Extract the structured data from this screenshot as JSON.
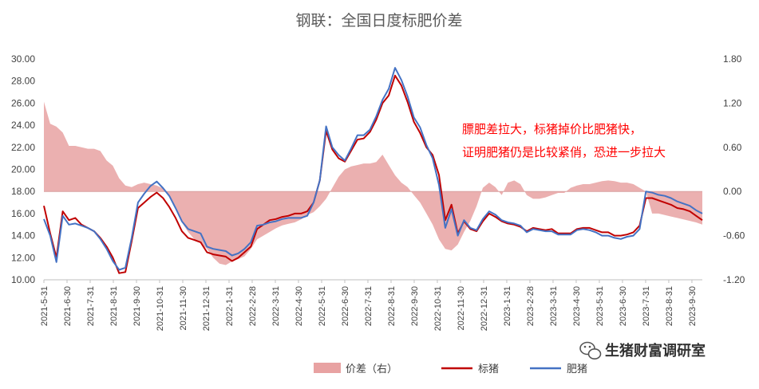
{
  "chart_data": {
    "type": "line",
    "title": "钢联：全国日度标肥价差",
    "y_left": {
      "min": 10,
      "max": 30,
      "ticks": [
        "30.00",
        "28.00",
        "26.00",
        "24.00",
        "22.00",
        "20.00",
        "18.00",
        "16.00",
        "14.00",
        "12.00",
        "10.00"
      ]
    },
    "y_right": {
      "min": -1.2,
      "max": 1.8,
      "ticks": [
        "1.80",
        "1.20",
        "0.60",
        "0.00",
        "-0.60",
        "-1.20"
      ]
    },
    "x_ticks": [
      "2021-5-31",
      "2021-6-30",
      "2021-7-31",
      "2021-8-31",
      "2021-9-30",
      "2021-10-31",
      "2021-11-30",
      "2021-12-31",
      "2022-1-31",
      "2022-2-28",
      "2022-3-31",
      "2022-4-30",
      "2022-5-31",
      "2022-6-30",
      "2022-7-31",
      "2022-8-31",
      "2022-9-30",
      "2022-10-31",
      "2022-11-30",
      "2022-12-31",
      "2023-1-31",
      "2023-2-28",
      "2023-3-31",
      "2023-4-30",
      "2023-5-31",
      "2023-6-30",
      "2023-7-31",
      "2023-8-31",
      "2023-9-30"
    ],
    "series": [
      {
        "name": "价差（右）",
        "type": "area",
        "color": "#e8a2a2",
        "axis": "right",
        "values": [
          1.22,
          0.92,
          0.88,
          0.8,
          0.62,
          0.62,
          0.6,
          0.58,
          0.58,
          0.55,
          0.42,
          0.35,
          0.18,
          0.08,
          0.06,
          0.1,
          0.12,
          0.1,
          0.08,
          0.04,
          -0.05,
          -0.2,
          -0.42,
          -0.55,
          -0.65,
          -0.7,
          -0.78,
          -0.9,
          -0.98,
          -1.0,
          -0.95,
          -0.92,
          -0.88,
          -0.78,
          -0.65,
          -0.6,
          -0.55,
          -0.5,
          -0.46,
          -0.44,
          -0.42,
          -0.38,
          -0.32,
          -0.28,
          -0.2,
          -0.1,
          0.05,
          0.2,
          0.3,
          0.34,
          0.36,
          0.38,
          0.38,
          0.4,
          0.5,
          0.36,
          0.22,
          0.12,
          0.06,
          -0.05,
          -0.15,
          -0.3,
          -0.45,
          -0.65,
          -0.78,
          -0.8,
          -0.72,
          -0.55,
          -0.4,
          -0.2,
          0.05,
          0.12,
          0.06,
          -0.05,
          0.12,
          0.15,
          0.1,
          -0.05,
          -0.1,
          -0.1,
          -0.08,
          -0.05,
          -0.02,
          -0.02,
          0.05,
          0.08,
          0.1,
          0.1,
          0.12,
          0.14,
          0.15,
          0.14,
          0.12,
          0.12,
          0.1,
          0.05,
          0.0,
          -0.3,
          -0.3,
          -0.32,
          -0.34,
          -0.36,
          -0.38,
          -0.4,
          -0.42,
          -0.45
        ]
      },
      {
        "name": "标猪",
        "type": "line",
        "color": "#c00000",
        "axis": "left",
        "values": [
          16.7,
          14.2,
          12.0,
          16.2,
          15.4,
          15.6,
          15.0,
          14.7,
          14.4,
          13.8,
          13.0,
          12.0,
          10.6,
          10.7,
          13.5,
          16.5,
          17.0,
          17.5,
          17.9,
          17.4,
          16.6,
          15.6,
          14.4,
          13.8,
          13.6,
          13.4,
          12.5,
          12.3,
          12.2,
          12.1,
          11.7,
          12.0,
          12.5,
          13.0,
          14.6,
          15.0,
          15.4,
          15.5,
          15.7,
          15.8,
          16.0,
          16.0,
          16.2,
          17.0,
          19.0,
          23.5,
          21.8,
          21.0,
          20.7,
          21.7,
          22.7,
          22.8,
          23.4,
          24.5,
          26.0,
          26.7,
          28.5,
          27.6,
          26.1,
          24.3,
          23.3,
          22.0,
          21.3,
          19.5,
          15.4,
          16.8,
          14.2,
          15.3,
          14.6,
          14.4,
          15.3,
          16.0,
          15.7,
          15.3,
          15.1,
          15.0,
          14.8,
          14.4,
          14.7,
          14.6,
          14.5,
          14.6,
          14.2,
          14.2,
          14.2,
          14.6,
          14.7,
          14.7,
          14.5,
          14.3,
          14.3,
          14.0,
          14.0,
          14.1,
          14.3,
          14.9,
          17.4,
          17.4,
          17.2,
          17.0,
          16.8,
          16.5,
          16.4,
          16.2,
          15.8,
          15.4
        ]
      },
      {
        "name": "肥猪",
        "type": "line",
        "color": "#4472c4",
        "axis": "left",
        "values": [
          15.5,
          14.0,
          11.6,
          15.8,
          15.0,
          15.1,
          14.9,
          14.7,
          14.4,
          13.7,
          12.8,
          11.7,
          10.9,
          11.1,
          13.8,
          17.0,
          17.8,
          18.5,
          18.9,
          18.3,
          17.6,
          16.5,
          15.3,
          14.6,
          14.4,
          14.2,
          13.0,
          12.8,
          12.7,
          12.6,
          12.2,
          12.4,
          12.8,
          13.4,
          14.9,
          15.0,
          15.2,
          15.3,
          15.5,
          15.6,
          15.6,
          15.6,
          15.8,
          17.0,
          19.0,
          23.9,
          22.0,
          21.3,
          20.8,
          21.9,
          23.1,
          23.1,
          23.6,
          24.8,
          26.3,
          27.3,
          29.2,
          28.1,
          26.6,
          24.7,
          23.8,
          22.2,
          21.0,
          18.6,
          14.7,
          16.4,
          14.0,
          15.4,
          14.7,
          14.5,
          15.5,
          16.2,
          15.9,
          15.4,
          15.2,
          15.1,
          14.9,
          14.3,
          14.6,
          14.5,
          14.4,
          14.4,
          14.1,
          14.1,
          14.1,
          14.5,
          14.6,
          14.5,
          14.3,
          14.0,
          14.0,
          13.8,
          13.7,
          13.9,
          14.0,
          14.6,
          18.0,
          17.9,
          17.7,
          17.6,
          17.4,
          17.1,
          16.9,
          16.7,
          16.3,
          16.0
        ]
      }
    ],
    "annotation": [
      "膘肥差拉大，标猪掉价比肥猪快，",
      "证明肥猪仍是比较紧俏，恐进一步拉大"
    ],
    "grid": false,
    "legend": "bottom"
  },
  "watermark": "生猪财富调研室",
  "watermark_icon": "wechat-icon"
}
